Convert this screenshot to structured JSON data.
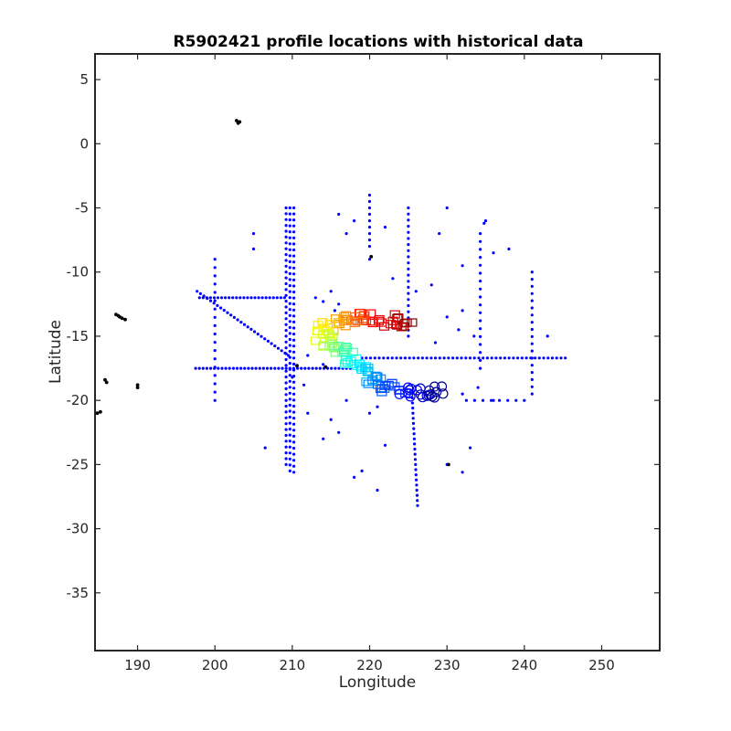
{
  "chart_data": {
    "type": "scatter",
    "title": "R5902421 profile locations with historical data",
    "xlabel": "Longitude",
    "ylabel": "Latitude",
    "xlim": [
      184.5,
      257.5
    ],
    "ylim": [
      -39.5,
      7
    ],
    "xticks": [
      190,
      200,
      210,
      220,
      230,
      240,
      250
    ],
    "yticks": [
      5,
      0,
      -5,
      -10,
      -15,
      -20,
      -25,
      -30,
      -35
    ],
    "grid": false,
    "legend": "none",
    "colors": {
      "historical_blue": "#0000ff",
      "historical_black": "#000000",
      "axis": "#262626"
    },
    "series": [
      {
        "marker": "dot",
        "color": "#0000ff",
        "lines": [
          {
            "from": [
              209.2,
              -5.0
            ],
            "to": [
              209.2,
              -25.0
            ],
            "n": 45
          },
          {
            "from": [
              209.7,
              -5.0
            ],
            "to": [
              209.7,
              -25.5
            ],
            "n": 45
          },
          {
            "from": [
              210.2,
              -5.0
            ],
            "to": [
              210.2,
              -25.6
            ],
            "n": 45
          },
          {
            "from": [
              197.5,
              -17.5
            ],
            "to": [
              217.5,
              -17.5
            ],
            "n": 42
          },
          {
            "from": [
              219.0,
              -16.7
            ],
            "to": [
              245.3,
              -16.7
            ],
            "n": 48
          },
          {
            "from": [
              197.7,
              -11.5
            ],
            "to": [
              209.5,
              -16.5
            ],
            "n": 28
          },
          {
            "from": [
              198.0,
              -12.0
            ],
            "to": [
              209.0,
              -12.0
            ],
            "n": 24
          },
          {
            "from": [
              200.0,
              -9.0
            ],
            "to": [
              200.0,
              -20.0
            ],
            "n": 18
          },
          {
            "from": [
              225.0,
              -5.0
            ],
            "to": [
              225.0,
              -15.0
            ],
            "n": 22
          },
          {
            "from": [
              225.5,
              -19.8
            ],
            "to": [
              226.2,
              -28.2
            ],
            "n": 22
          },
          {
            "from": [
              241.0,
              -10.0
            ],
            "to": [
              241.0,
              -19.5
            ],
            "n": 18
          },
          {
            "from": [
              234.3,
              -7.0
            ],
            "to": [
              234.3,
              -17.5
            ],
            "n": 18
          },
          {
            "from": [
              220.0,
              -4.0
            ],
            "to": [
              220.0,
              -8.0
            ],
            "n": 9
          },
          {
            "from": [
              232.5,
              -20.0
            ],
            "to": [
              240.0,
              -20.0
            ],
            "n": 8
          }
        ],
        "points": [
          [
            205,
            -7.0
          ],
          [
            205,
            -8.2
          ],
          [
            216,
            -5.5
          ],
          [
            218,
            -6.0
          ],
          [
            222,
            -6.5
          ],
          [
            217,
            -7.0
          ],
          [
            220,
            -9.0
          ],
          [
            223,
            -10.5
          ],
          [
            226,
            -11.5
          ],
          [
            228,
            -11.0
          ],
          [
            230,
            -13.5
          ],
          [
            232,
            -13.0
          ],
          [
            236,
            -8.5
          ],
          [
            238,
            -8.2
          ],
          [
            235,
            -6.0
          ],
          [
            234.8,
            -6.2
          ],
          [
            232,
            -9.5
          ],
          [
            229,
            -7.0
          ],
          [
            230,
            -5.0
          ],
          [
            214,
            -12.3
          ],
          [
            213,
            -12.0
          ],
          [
            215,
            -11.5
          ],
          [
            215.5,
            -13.0
          ],
          [
            216,
            -12.5
          ],
          [
            228.5,
            -15.5
          ],
          [
            231.5,
            -14.5
          ],
          [
            233.5,
            -15.0
          ],
          [
            243,
            -15.0
          ],
          [
            232,
            -19.5
          ],
          [
            234,
            -19.0
          ],
          [
            236,
            -20.0
          ],
          [
            212,
            -21.0
          ],
          [
            215,
            -21.5
          ],
          [
            216,
            -22.5
          ],
          [
            214,
            -23.0
          ],
          [
            220,
            -21.0
          ],
          [
            222,
            -23.5
          ],
          [
            219,
            -25.5
          ],
          [
            221,
            -27.0
          ],
          [
            218,
            -26.0
          ],
          [
            206.5,
            -23.7
          ],
          [
            233,
            -23.7
          ],
          [
            232,
            -25.6
          ],
          [
            212,
            -16.5
          ],
          [
            214,
            -17.2
          ],
          [
            210,
            -18.2
          ],
          [
            211.5,
            -18.8
          ],
          [
            217,
            -20.0
          ],
          [
            221,
            -20.5
          ],
          [
            230,
            -25.0
          ]
        ]
      },
      {
        "marker": "dot",
        "color": "#000000",
        "points": [
          [
            202.8,
            1.8
          ],
          [
            203.0,
            1.6
          ],
          [
            203.2,
            1.7
          ],
          [
            187.2,
            -13.3
          ],
          [
            187.5,
            -13.4
          ],
          [
            188.0,
            -13.6
          ],
          [
            188.4,
            -13.7
          ],
          [
            187.7,
            -13.5
          ],
          [
            185.8,
            -18.4
          ],
          [
            186.0,
            -18.6
          ],
          [
            190.0,
            -18.8
          ],
          [
            190.0,
            -19.0
          ],
          [
            184.8,
            -21.0
          ],
          [
            185.2,
            -20.9
          ],
          [
            210.6,
            -17.3
          ],
          [
            214.3,
            -17.4
          ],
          [
            220.2,
            -8.8
          ],
          [
            230.2,
            -25.0
          ]
        ]
      },
      {
        "marker": "profile-symbols",
        "colormap": "jet",
        "track": [
          [
            225.5,
            -14.0
          ],
          [
            223.0,
            -13.8
          ],
          [
            220.5,
            -13.7
          ],
          [
            218.5,
            -13.5
          ],
          [
            216.5,
            -13.8
          ],
          [
            214.5,
            -14.3
          ],
          [
            214.0,
            -15.0
          ],
          [
            215.5,
            -15.5
          ],
          [
            217.0,
            -16.0
          ],
          [
            218.0,
            -17.0
          ],
          [
            219.0,
            -17.8
          ],
          [
            220.5,
            -18.5
          ],
          [
            222.5,
            -19.0
          ],
          [
            225.0,
            -19.2
          ],
          [
            227.5,
            -19.3
          ],
          [
            229.0,
            -19.4
          ]
        ],
        "count": 130
      }
    ]
  }
}
